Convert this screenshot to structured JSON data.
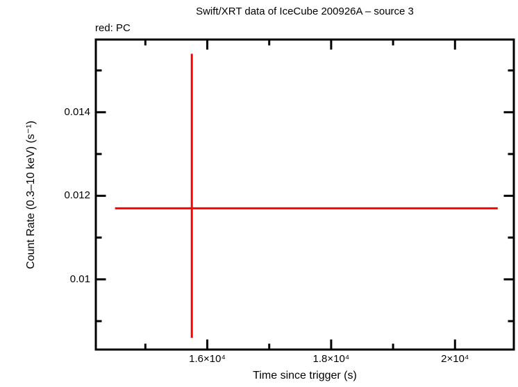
{
  "chart_data": {
    "type": "scatter",
    "title": "Swift/XRT data of IceCube 200926A – source 3",
    "legend_note": "red: PC",
    "xlabel": "Time since trigger (s)",
    "ylabel": "Count Rate (0.3–10 keV) (s⁻¹)",
    "xlim": [
      14200,
      20950
    ],
    "ylim": [
      0.00832,
      0.01574
    ],
    "grid": false,
    "x_major_ticks": [
      {
        "value": 16000,
        "label": "1.6×10⁴"
      },
      {
        "value": 18000,
        "label": "1.8×10⁴"
      },
      {
        "value": 20000,
        "label": "2×10⁴"
      }
    ],
    "x_minor_ticks": [
      15000,
      17000,
      19000
    ],
    "y_major_ticks": [
      {
        "value": 0.01,
        "label": "0.01"
      },
      {
        "value": 0.012,
        "label": "0.012"
      },
      {
        "value": 0.014,
        "label": "0.014"
      }
    ],
    "y_minor_ticks": [
      0.009,
      0.011,
      0.013,
      0.015
    ],
    "series": [
      {
        "name": "PC",
        "color": "#ff0000",
        "points": [
          {
            "x": 15750,
            "x_low": 14510,
            "x_high": 20690,
            "y": 0.0117,
            "y_low": 0.0086,
            "y_high": 0.0154
          }
        ]
      }
    ]
  }
}
